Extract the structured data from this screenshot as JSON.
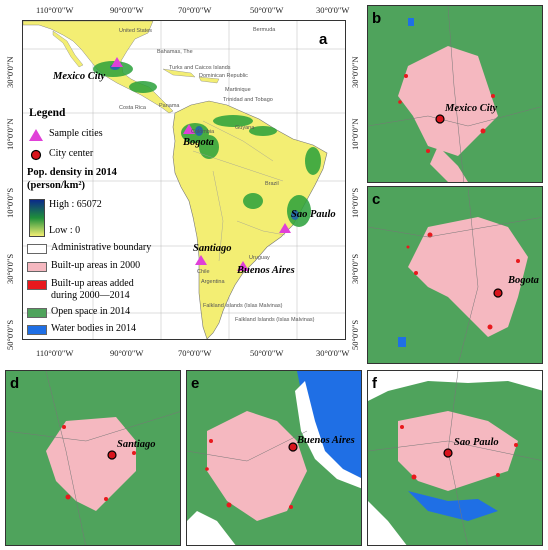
{
  "panel_labels": {
    "a": "a",
    "b": "b",
    "c": "c",
    "d": "d",
    "e": "e",
    "f": "f"
  },
  "top_ticks": [
    "110°0'0\"W",
    "90°0'0\"W",
    "70°0'0\"W",
    "50°0'0\"W",
    "30°0'0\"W"
  ],
  "bottom_ticks": [
    "110°0'0\"W",
    "90°0'0\"W",
    "70°0'0\"W",
    "50°0'0\"W",
    "30°0'0\"W"
  ],
  "left_ticks": [
    "30°0'0\"N",
    "10°0'0\"N",
    "10°0'0\"S",
    "30°0'0\"S",
    "50°0'0\"S"
  ],
  "right_ticks": [
    "30°0'0\"N",
    "10°0'0\"N",
    "10°0'0\"S",
    "30°0'0\"S",
    "50°0'0\"S"
  ],
  "cities": {
    "mexico_city": "Mexico City",
    "bogota": "Bogota",
    "sao_paulo": "Sao Paulo",
    "santiago": "Santiago",
    "buenos_aires": "Buenos Aires"
  },
  "place_names": {
    "united_states": "United States",
    "bermuda": "Bermuda",
    "bahamas": "Bahamas, The",
    "turks": "Turks and Caicos Islands",
    "dominican": "Dominican Republic",
    "martinique": "Martinique",
    "trinidad": "Trinidad and Tobago",
    "costa_rica": "Costa Rica",
    "panama": "Panama",
    "colombia": "Colombia",
    "guyana": "Guyana",
    "brazil": "Brazil",
    "chile": "Chile",
    "argentina": "Argentina",
    "uruguay": "Uruguay",
    "falkland": "Falkland Islands (Islas Malvinas)",
    "falkland2": "Falkland Islands (Islas Malvinas)"
  },
  "legend": {
    "title": "Legend",
    "sample_cities": "Sample cities",
    "city_center": "City center",
    "pop_title_line1": "Pop. density in 2014",
    "pop_title_line2": "(person/km²)",
    "high": "High : 65072",
    "low": "Low : 0",
    "admin": "Administrative boundary",
    "builtup2000": "Built-up areas in 2000",
    "added_line1": "Built-up areas added",
    "added_line2": "during 2000—2014",
    "open": "Open space in 2014",
    "water": "Water bodies in 2014"
  },
  "colors": {
    "ocean": "#ffffff",
    "land": "#f3ee73",
    "open": "#4fa35c",
    "builtup": "#f5b8c0",
    "added": "#e8191d",
    "water": "#1f6fe5",
    "sample": "#e040d8",
    "center": "#d8141c"
  }
}
